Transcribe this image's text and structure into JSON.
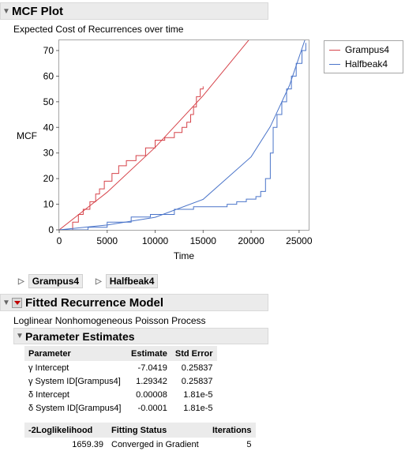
{
  "mcf_section": {
    "title": "MCF Plot",
    "subtitle": "Expected Cost of Recurrences over time"
  },
  "chart_data": {
    "type": "line",
    "title": "",
    "xlabel": "Time",
    "ylabel": "MCF",
    "xlim": [
      0,
      26000
    ],
    "ylim": [
      0,
      74
    ],
    "x_ticks": [
      "0",
      "5000",
      "10000",
      "15000",
      "20000",
      "25000"
    ],
    "y_ticks": [
      "0",
      "10",
      "20",
      "30",
      "40",
      "50",
      "60",
      "70"
    ],
    "legend_position": "right",
    "series": [
      {
        "name": "Grampus4",
        "color": "#d6434a",
        "kind": "step",
        "points": [
          [
            1000,
            0
          ],
          [
            1400,
            3
          ],
          [
            2000,
            6
          ],
          [
            2500,
            8
          ],
          [
            3200,
            11
          ],
          [
            3800,
            14
          ],
          [
            4200,
            16
          ],
          [
            4700,
            19
          ],
          [
            5500,
            22
          ],
          [
            6200,
            25
          ],
          [
            7000,
            27
          ],
          [
            8000,
            29
          ],
          [
            9000,
            32
          ],
          [
            10000,
            35
          ],
          [
            11000,
            36
          ],
          [
            12000,
            38
          ],
          [
            12800,
            40
          ],
          [
            13300,
            42
          ],
          [
            13700,
            45
          ],
          [
            14000,
            48
          ],
          [
            14300,
            52
          ],
          [
            14700,
            55
          ],
          [
            15000,
            56
          ]
        ]
      },
      {
        "name": "Grampus4 fit",
        "color": "#d6434a",
        "kind": "curve",
        "points": [
          [
            0,
            0
          ],
          [
            5000,
            14.7
          ],
          [
            10000,
            32.2
          ],
          [
            15000,
            52.4
          ],
          [
            20000,
            75.2
          ]
        ]
      },
      {
        "name": "Halfbeak4",
        "color": "#4a74c9",
        "kind": "step",
        "points": [
          [
            0,
            0
          ],
          [
            3000,
            1
          ],
          [
            5000,
            3
          ],
          [
            7500,
            5
          ],
          [
            9500,
            6
          ],
          [
            12000,
            8
          ],
          [
            14000,
            9
          ],
          [
            16000,
            9
          ],
          [
            17500,
            10
          ],
          [
            18500,
            11
          ],
          [
            19500,
            12
          ],
          [
            20500,
            13
          ],
          [
            21000,
            15
          ],
          [
            21500,
            20
          ],
          [
            22000,
            30
          ],
          [
            22300,
            40
          ],
          [
            22700,
            45
          ],
          [
            23200,
            50
          ],
          [
            23700,
            55
          ],
          [
            24200,
            60
          ],
          [
            24700,
            65
          ],
          [
            25300,
            70
          ],
          [
            25700,
            73
          ]
        ]
      },
      {
        "name": "Halfbeak4 fit",
        "color": "#4a74c9",
        "kind": "curve",
        "points": [
          [
            0,
            0
          ],
          [
            5000,
            1.9
          ],
          [
            10000,
            4.9
          ],
          [
            15000,
            11.9
          ],
          [
            20000,
            28.5
          ],
          [
            22000,
            40.3
          ],
          [
            24000,
            56.4
          ],
          [
            26000,
            78.5
          ]
        ]
      }
    ]
  },
  "legend": {
    "items": [
      {
        "label": "Grampus4",
        "color": "#d6434a"
      },
      {
        "label": "Halfbeak4",
        "color": "#4a74c9"
      }
    ]
  },
  "group_buttons": {
    "grampus": "Grampus4",
    "halfbeak": "Halfbeak4"
  },
  "model_section": {
    "title": "Fitted Recurrence Model",
    "subtitle": "Loglinear Nonhomogeneous Poisson Process"
  },
  "param_section": {
    "title": "Parameter Estimates"
  },
  "param_table": {
    "headers": [
      "Parameter",
      "Estimate",
      "Std Error"
    ],
    "rows": [
      [
        "γ Intercept",
        "-7.0419",
        "0.25837"
      ],
      [
        "γ System ID[Grampus4]",
        "1.29342",
        "0.25837"
      ],
      [
        "δ Intercept",
        "0.00008",
        "1.81e-5"
      ],
      [
        "δ System ID[Grampus4]",
        "-0.0001",
        "1.81e-5"
      ]
    ]
  },
  "fit_table": {
    "headers": [
      "-2Loglikelihood",
      "Fitting Status",
      "Iterations"
    ],
    "row": [
      "1659.39",
      "Converged in Gradient",
      "5"
    ]
  }
}
